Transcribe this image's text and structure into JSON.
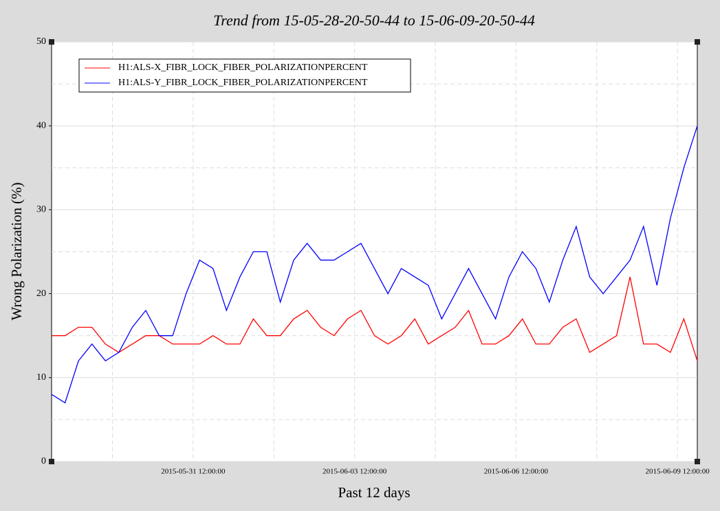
{
  "chart_data": {
    "type": "line",
    "title": "Trend from 15-05-28-20-50-44 to 15-06-09-20-50-44",
    "xlabel": "Past 12 days",
    "ylabel": "Wrong Polarization (%)",
    "x": [
      "2015-05-28 20:50:44",
      "2015-05-29 02:50:44",
      "2015-05-29 08:50:44",
      "2015-05-29 14:50:44",
      "2015-05-29 20:50:44",
      "2015-05-30 02:50:44",
      "2015-05-30 08:50:44",
      "2015-05-30 14:50:44",
      "2015-05-30 20:50:44",
      "2015-05-31 02:50:44",
      "2015-05-31 08:50:44",
      "2015-05-31 14:50:44",
      "2015-05-31 20:50:44",
      "2015-06-01 02:50:44",
      "2015-06-01 08:50:44",
      "2015-06-01 14:50:44",
      "2015-06-01 20:50:44",
      "2015-06-02 02:50:44",
      "2015-06-02 08:50:44",
      "2015-06-02 14:50:44",
      "2015-06-02 20:50:44",
      "2015-06-03 02:50:44",
      "2015-06-03 08:50:44",
      "2015-06-03 14:50:44",
      "2015-06-03 20:50:44",
      "2015-06-04 02:50:44",
      "2015-06-04 08:50:44",
      "2015-06-04 14:50:44",
      "2015-06-04 20:50:44",
      "2015-06-05 02:50:44",
      "2015-06-05 08:50:44",
      "2015-06-05 14:50:44",
      "2015-06-05 20:50:44",
      "2015-06-06 02:50:44",
      "2015-06-06 08:50:44",
      "2015-06-06 14:50:44",
      "2015-06-06 20:50:44",
      "2015-06-07 02:50:44",
      "2015-06-07 08:50:44",
      "2015-06-07 14:50:44",
      "2015-06-07 20:50:44",
      "2015-06-08 02:50:44",
      "2015-06-08 08:50:44",
      "2015-06-08 14:50:44",
      "2015-06-08 20:50:44",
      "2015-06-09 02:50:44",
      "2015-06-09 08:50:44",
      "2015-06-09 14:50:44",
      "2015-06-09 20:50:44"
    ],
    "series": [
      {
        "name": "H1:ALS-X_FIBR_LOCK_FIBER_POLARIZATIONPERCENT",
        "color": "#ff0000",
        "values": [
          15,
          15,
          16,
          16,
          14,
          13,
          14,
          15,
          15,
          14,
          14,
          14,
          15,
          14,
          14,
          17,
          15,
          15,
          17,
          18,
          16,
          15,
          17,
          18,
          15,
          14,
          15,
          17,
          14,
          15,
          16,
          18,
          14,
          14,
          15,
          17,
          14,
          14,
          16,
          17,
          13,
          14,
          15,
          22,
          14,
          14,
          13,
          17,
          12
        ]
      },
      {
        "name": "H1:ALS-Y_FIBR_LOCK_FIBER_POLARIZATIONPERCENT",
        "color": "#0000ff",
        "values": [
          8,
          7,
          12,
          14,
          12,
          13,
          16,
          18,
          15,
          15,
          20,
          24,
          23,
          18,
          22,
          25,
          25,
          19,
          24,
          26,
          24,
          24,
          25,
          26,
          23,
          20,
          23,
          22,
          21,
          17,
          20,
          23,
          20,
          17,
          22,
          25,
          23,
          19,
          24,
          28,
          22,
          20,
          22,
          24,
          28,
          21,
          29,
          35,
          40
        ]
      }
    ],
    "xlim": [
      "2015-05-28 20:50:44",
      "2015-06-09 20:50:44"
    ],
    "xticks": [
      "2015-05-31 12:00:00",
      "2015-06-03 12:00:00",
      "2015-06-06 12:00:00",
      "2015-06-09 12:00:00"
    ],
    "ylim": [
      0,
      50
    ],
    "yticks": [
      0,
      10,
      20,
      30,
      40,
      50
    ],
    "grid": true,
    "legend": "upper left"
  }
}
